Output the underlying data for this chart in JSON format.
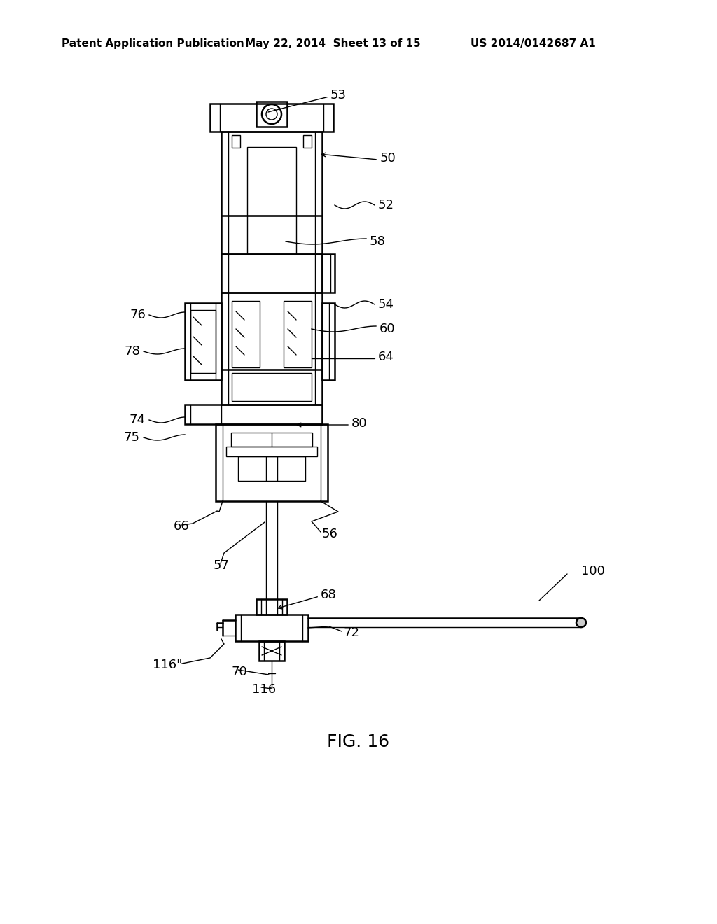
{
  "header_left": "Patent Application Publication",
  "header_mid": "May 22, 2014  Sheet 13 of 15",
  "header_right": "US 2014/0142687 A1",
  "fig_label": "FIG. 16",
  "bg": "#ffffff",
  "lc": "#000000"
}
